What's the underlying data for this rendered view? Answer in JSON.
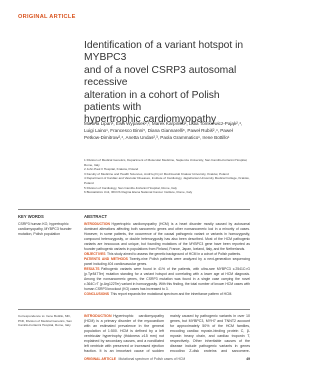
{
  "header": {
    "kicker": "ORIGINAL ARTICLE"
  },
  "title": [
    "Identification of a variant hotspot in MYBPC3",
    "and of a novel CSRP3 autosomal recessive",
    "alteration in a cohort of Polish patients with",
    "hypertrophic cardiomyopathy"
  ],
  "authors": "Martina Lipari¹, Ewa Wypasek²,³, Marek Karpiński², Lidia Tomkiewicz-Pająk²,⁴, Luigi Laino¹, Francesco Binni⁵, Diana Giannarelli⁶, Paweł Rubiś²,⁴, Paweł Petkow-Dimitrow²,⁴, Anetta Undas²,³, Paola Grammatico¹, Irene Bottillo¹",
  "affiliations": [
    "1 Division of Medical Genetics, Department of Molecular Medicine, Sapienza University, San Camillo-Forlanini Hospital, Rome, Italy",
    "2 John Paul II Hospital, Kraków, Poland",
    "3 Faculty of Medicine and Health Sciences, Andrzej Frycz Modrzewski Krakow University, Kraków, Poland",
    "4 Department of Cardiac and Vascular Diseases, Institute of Cardiology, Jagiellonian University Medical College, Kraków, Poland",
    "5 Division of Cardiology, San Camillo-Forlanini Hospital, Rome, Italy",
    "6 Biostatistics Unit, IRCCS Regina Elena National Cancer Institute, Rome, Italy"
  ],
  "keywords": {
    "heading": "KEY WORDS",
    "text": "CSRP3 human KO, hypertrophic cardiomyopathy, MYBPC3 founder mutation, Polish population"
  },
  "abstract": {
    "heading": "ABSTRACT",
    "sections": [
      {
        "label": "INTRODUCTION",
        "text": "Hypertrophic cardiomyopathy (HCM) is a heart disorder mostly caused by autosomal dominant alterations affecting both sarcomeric genes and other nonsarcomeric loci in a minority of cases. However, in some patients, the occurrence of the causal pathogenic variant or variants in homozygosity, compound heterozygosity, or double heterozygosity has also been described. Most of the HCM pathogenic variants are innocuous and unique, but founding mutations of the MYBPC3 gene have been reported as founder pathogenic variants in populations from Finland, France, Japan, Iceland, Italy, and the Netherlands."
      },
      {
        "label": "OBJECTIVES",
        "text": "This study aimed to assess the genetic background of HCM in a cohort of Polish patients."
      },
      {
        "label": "PATIENTS AND METHODS",
        "text": "Twenty-nine Polish patients were analyzed by a next-generation sequencing panel including 404 cardiovascular genes."
      },
      {
        "label": "RESULTS",
        "text": "Pathogenic variants were found in 41% of the patients, with ultra-rare MYBPC3 c.2541C>G (p.Tyr847Ter) mutation standing for a variant hotspot and correlating with a lower age at HCM diagnosis. Among the nonsarcomeric genes, the CSRP3 mutation was found in a single case carrying the novel c.364C>T (p.Arg122Ter) variant in homozygosity. With this finding, the total number of known HCM cases with human CSRP3 knockout (KO) cases has increased to 3."
      },
      {
        "label": "CONCLUSIONS",
        "text": "This report expands the mutational spectrum and the inheritance pattern of HCM."
      }
    ]
  },
  "correspondence": "Correspondence to: Irene Bottillo, MD, PhD, Division of Medical Genetics, San Camillo-Forlanini Hospital, Rome, Italy",
  "body": {
    "column1": {
      "label": "INTRODUCTION",
      "text": "Hypertrophic cardiomyopathy (HCM) is a primary disorder of the myocardium with an estimated prevalence in the general population of 1:500. HCM is defined by a left ventricular hypertrophy (thickness ≥15 mm) not explained by secondary causes, and a nondilated left ventricle with preserved or increased ejection fraction. It is an important cause of sudden cardiac death in young and athletic individuals."
    },
    "column2": "mainly caused by pathogenic variants in over 10 genes, but MYBPC3, MYH7 and TNNT2 account for approximately 50% of the HCM families, encoding cardiac myosin-binding protein C, β-myosin heavy chain, and cardiac troponin T, respectively. Other inheritable causes of the disease include pathogenic variants in genes encoding Z-disk proteins and sarcomere-associated proteins. Most of the pathogenic variants found in HCM genes are missense and"
  },
  "footer": {
    "label": "ORIGINAL ARTICLE",
    "text": "Mutational spectrum of Polish cases of HCM",
    "page": "49"
  }
}
